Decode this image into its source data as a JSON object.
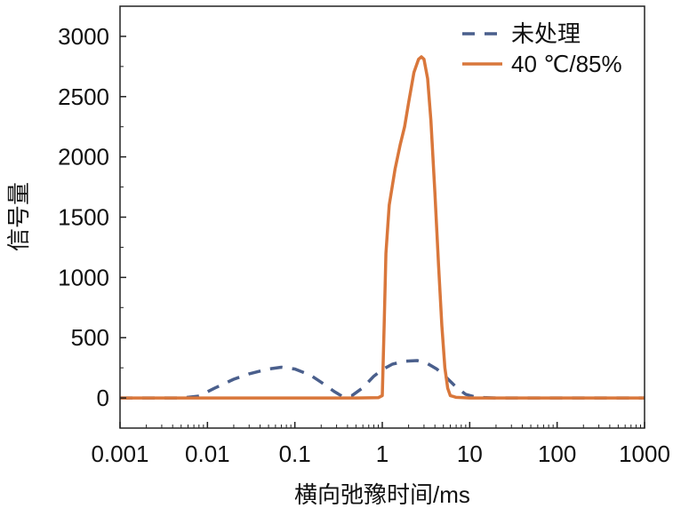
{
  "chart_data": {
    "type": "line",
    "title": "",
    "xlabel": "横向弛豫时间/ms",
    "ylabel": "信号量",
    "x_scale": "log",
    "xlim": [
      0.001,
      1000
    ],
    "ylim": [
      -250,
      3250
    ],
    "x_ticks": [
      0.001,
      0.01,
      0.1,
      1,
      10,
      100,
      1000
    ],
    "x_tick_labels": [
      "0.001",
      "0.01",
      "0.1",
      "1",
      "10",
      "100",
      "1000"
    ],
    "y_ticks": [
      0,
      500,
      1000,
      1500,
      2000,
      2500,
      3000
    ],
    "y_tick_labels": [
      "0",
      "500",
      "1000",
      "1500",
      "2000",
      "2500",
      "3000"
    ],
    "grid": false,
    "legend_position": "top-right",
    "series": [
      {
        "name": "未处理",
        "style": "dashed",
        "color": "#4a5f8c",
        "x": [
          0.001,
          0.005,
          0.008,
          0.012,
          0.02,
          0.03,
          0.05,
          0.07,
          0.1,
          0.15,
          0.2,
          0.28,
          0.35,
          0.45,
          0.6,
          0.8,
          1.0,
          1.3,
          1.8,
          2.5,
          3.2,
          4.2,
          5.5,
          7,
          9,
          12,
          20,
          100,
          1000
        ],
        "y": [
          0,
          0,
          15,
          80,
          155,
          200,
          240,
          255,
          240,
          190,
          130,
          55,
          12,
          20,
          85,
          180,
          235,
          280,
          305,
          310,
          290,
          240,
          165,
          90,
          30,
          5,
          0,
          0,
          0
        ]
      },
      {
        "name": "40 ℃/85%",
        "style": "solid",
        "color": "#d9773b",
        "x": [
          0.001,
          0.5,
          0.9,
          1.0,
          1.05,
          1.1,
          1.2,
          1.4,
          1.6,
          1.8,
          2.0,
          2.3,
          2.6,
          2.8,
          3.0,
          3.3,
          3.6,
          4.0,
          4.4,
          4.8,
          5.2,
          5.6,
          6.0,
          7,
          10,
          1000
        ],
        "y": [
          0,
          0,
          2,
          20,
          600,
          1200,
          1600,
          1900,
          2100,
          2250,
          2450,
          2700,
          2810,
          2830,
          2810,
          2650,
          2300,
          1700,
          1100,
          600,
          250,
          80,
          20,
          5,
          0,
          0
        ]
      }
    ]
  }
}
